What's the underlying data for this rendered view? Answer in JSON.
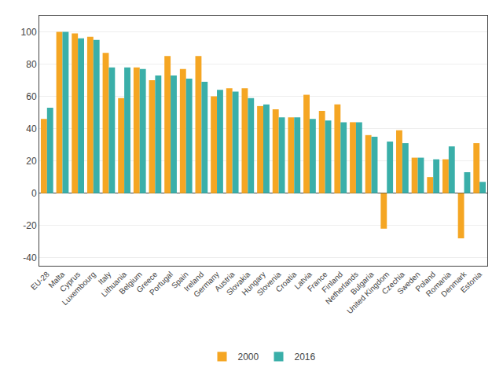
{
  "chart_data": {
    "type": "bar",
    "categories": [
      "EU-28",
      "Malta",
      "Cyprus",
      "Luxembourg",
      "Italy",
      "Lithuania",
      "Belgium",
      "Greece",
      "Portugal",
      "Spain",
      "Ireland",
      "Germany",
      "Austria",
      "Slovakia",
      "Hungary",
      "Slovenia",
      "Croatia",
      "Latvia",
      "France",
      "Finland",
      "Netherlands",
      "Bulgaria",
      "United Kingdom",
      "Czechia",
      "Sweden",
      "Poland",
      "Romania",
      "Denmark",
      "Estonia"
    ],
    "series": [
      {
        "name": "2000",
        "color": "#F5A623",
        "values": [
          46,
          100,
          99,
          97,
          87,
          59,
          78,
          70,
          85,
          77,
          85,
          60,
          65,
          65,
          54,
          52,
          47,
          61,
          51,
          55,
          44,
          36,
          -22,
          39,
          22,
          10,
          21,
          -28,
          31
        ]
      },
      {
        "name": "2016",
        "color": "#3AAFA9",
        "values": [
          53,
          100,
          96,
          95,
          78,
          78,
          77,
          73,
          73,
          71,
          69,
          64,
          63,
          59,
          55,
          47,
          47,
          46,
          45,
          44,
          44,
          35,
          32,
          31,
          22,
          21,
          29,
          13,
          7
        ]
      }
    ],
    "ylim": [
      -45,
      110
    ],
    "yticks": [
      -40,
      -20,
      0,
      20,
      40,
      60,
      80,
      100
    ],
    "grid": true,
    "legend": "bottom"
  }
}
